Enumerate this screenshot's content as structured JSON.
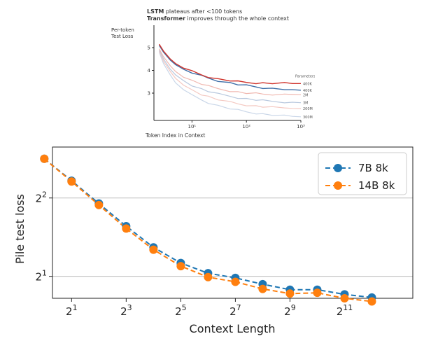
{
  "chart_data": [
    {
      "type": "line",
      "title_lines": [
        {
          "bold": "LSTM",
          "rest": " plateaus after <100 tokens"
        },
        {
          "bold": "Transformer",
          "rest": " improves through the whole context"
        }
      ],
      "ylabel_lines": [
        "Per-token",
        "Test Loss"
      ],
      "xlabel": "Token Index in Context",
      "xscale": "log",
      "xlim": [
        2,
        1000
      ],
      "ylim": [
        1.8,
        5.8
      ],
      "yticks": [
        "3",
        "4",
        "5"
      ],
      "xticks": [
        {
          "value": 10,
          "label": "10¹"
        },
        {
          "value": 100,
          "label": "10²"
        },
        {
          "value": 1000,
          "label": "10³"
        }
      ],
      "legend_title": "Parameters",
      "x": [
        2.5,
        3,
        4,
        5,
        7,
        10,
        15,
        20,
        30,
        50,
        70,
        100,
        150,
        200,
        300,
        500,
        700,
        1000
      ],
      "series": [
        {
          "name": "400K",
          "color": "#d0342c",
          "values": [
            5.15,
            4.85,
            4.5,
            4.3,
            4.1,
            3.95,
            3.8,
            3.72,
            3.62,
            3.55,
            3.5,
            3.47,
            3.45,
            3.44,
            3.43,
            3.43,
            3.42,
            3.42
          ]
        },
        {
          "name": "400K",
          "color": "#3f6fa8",
          "values": [
            5.1,
            4.8,
            4.45,
            4.25,
            4.05,
            3.9,
            3.75,
            3.66,
            3.55,
            3.45,
            3.38,
            3.33,
            3.27,
            3.24,
            3.2,
            3.17,
            3.15,
            3.13
          ]
        },
        {
          "name": "2M",
          "color": "#f0b8b0",
          "values": [
            4.95,
            4.6,
            4.2,
            3.95,
            3.7,
            3.55,
            3.4,
            3.3,
            3.2,
            3.1,
            3.05,
            3.0,
            2.98,
            2.96,
            2.95,
            2.94,
            2.94,
            2.93
          ]
        },
        {
          "name": "3M",
          "color": "#b8c8de",
          "values": [
            4.9,
            4.5,
            4.05,
            3.8,
            3.55,
            3.35,
            3.18,
            3.08,
            2.96,
            2.86,
            2.8,
            2.75,
            2.7,
            2.67,
            2.64,
            2.61,
            2.6,
            2.58
          ]
        },
        {
          "name": "200M",
          "color": "#f4c9c2",
          "values": [
            4.85,
            4.4,
            3.95,
            3.65,
            3.35,
            3.15,
            2.95,
            2.85,
            2.72,
            2.6,
            2.53,
            2.48,
            2.43,
            2.4,
            2.37,
            2.35,
            2.33,
            2.32
          ]
        },
        {
          "name": "300M",
          "color": "#c9d6e8",
          "values": [
            4.8,
            4.3,
            3.8,
            3.45,
            3.15,
            2.9,
            2.7,
            2.58,
            2.45,
            2.32,
            2.25,
            2.18,
            2.12,
            2.08,
            2.04,
            2.0,
            1.98,
            1.96
          ]
        }
      ]
    },
    {
      "type": "line",
      "xlabel": "Context Length",
      "ylabel": "Pile test loss",
      "xscale": "log2",
      "yscale": "log2",
      "xlim": [
        0.3,
        13.5
      ],
      "ylim": [
        0.72,
        2.65
      ],
      "xticks": [
        {
          "exp": 1,
          "base": "2",
          "sup": "1"
        },
        {
          "exp": 3,
          "base": "2",
          "sup": "3"
        },
        {
          "exp": 5,
          "base": "2",
          "sup": "5"
        },
        {
          "exp": 7,
          "base": "2",
          "sup": "7"
        },
        {
          "exp": 9,
          "base": "2",
          "sup": "9"
        },
        {
          "exp": 11,
          "base": "2",
          "sup": "11"
        }
      ],
      "yticks": [
        {
          "exp": 1,
          "base": "2",
          "sup": "1"
        },
        {
          "exp": 2,
          "base": "2",
          "sup": "2"
        }
      ],
      "grid_y": true,
      "legend_position": "top-right",
      "x_exponents": [
        0,
        1,
        2,
        3,
        4,
        5,
        6,
        7,
        8,
        9,
        10,
        11,
        12
      ],
      "series": [
        {
          "name": "7B 8k",
          "color": "#1f77b4",
          "log2_values": [
            2.5,
            2.22,
            1.93,
            1.64,
            1.37,
            1.17,
            1.04,
            0.98,
            0.9,
            0.83,
            0.83,
            0.77,
            0.73
          ]
        },
        {
          "name": "14B 8k",
          "color": "#ff7f0e",
          "log2_values": [
            2.5,
            2.21,
            1.91,
            1.61,
            1.34,
            1.13,
            0.99,
            0.93,
            0.84,
            0.78,
            0.79,
            0.72,
            0.68
          ]
        }
      ]
    }
  ]
}
